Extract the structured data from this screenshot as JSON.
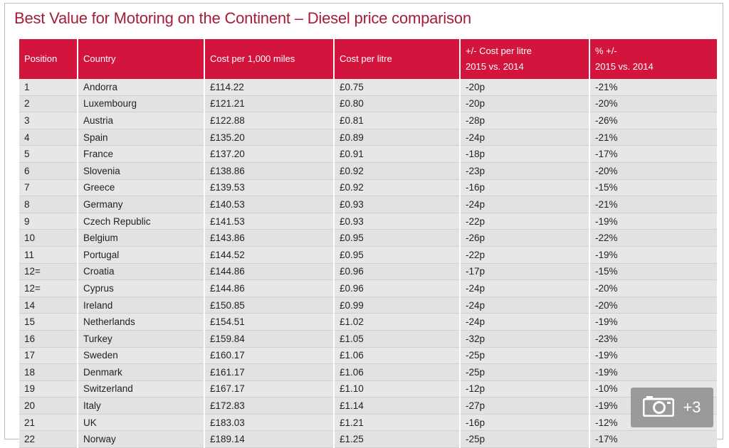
{
  "title": "Best Value for Motoring on the Continent – Diesel price comparison",
  "headers": {
    "position": "Position",
    "country": "Country",
    "cost_1000": "Cost per 1,000 miles",
    "cost_litre": "Cost per litre",
    "change_litre_line1": "+/- Cost per litre",
    "change_litre_line2": "2015 vs. 2014",
    "change_pct_line1": "% +/-",
    "change_pct_line2": "2015 vs. 2014"
  },
  "rows": [
    {
      "position": "1",
      "country": "Andorra",
      "cost_1000": "£114.22",
      "cost_litre": "£0.75",
      "change_litre": "-20p",
      "change_pct": "-21%"
    },
    {
      "position": "2",
      "country": "Luxembourg",
      "cost_1000": "£121.21",
      "cost_litre": "£0.80",
      "change_litre": "-20p",
      "change_pct": "-20%"
    },
    {
      "position": "3",
      "country": "Austria",
      "cost_1000": "£122.88",
      "cost_litre": "£0.81",
      "change_litre": "-28p",
      "change_pct": "-26%"
    },
    {
      "position": "4",
      "country": "Spain",
      "cost_1000": "£135.20",
      "cost_litre": "£0.89",
      "change_litre": "-24p",
      "change_pct": "-21%"
    },
    {
      "position": "5",
      "country": "France",
      "cost_1000": "£137.20",
      "cost_litre": "£0.91",
      "change_litre": "-18p",
      "change_pct": "-17%"
    },
    {
      "position": "6",
      "country": "Slovenia",
      "cost_1000": "£138.86",
      "cost_litre": "£0.92",
      "change_litre": "-23p",
      "change_pct": "-20%"
    },
    {
      "position": "7",
      "country": "Greece",
      "cost_1000": "£139.53",
      "cost_litre": "£0.92",
      "change_litre": "-16p",
      "change_pct": "-15%"
    },
    {
      "position": "8",
      "country": "Germany",
      "cost_1000": "£140.53",
      "cost_litre": "£0.93",
      "change_litre": "-24p",
      "change_pct": "-21%"
    },
    {
      "position": "9",
      "country": "Czech Republic",
      "cost_1000": "£141.53",
      "cost_litre": "£0.93",
      "change_litre": "-22p",
      "change_pct": "-19%"
    },
    {
      "position": "10",
      "country": "Belgium",
      "cost_1000": "£143.86",
      "cost_litre": "£0.95",
      "change_litre": "-26p",
      "change_pct": "-22%"
    },
    {
      "position": "11",
      "country": "Portugal",
      "cost_1000": "£144.52",
      "cost_litre": "£0.95",
      "change_litre": "-22p",
      "change_pct": "-19%"
    },
    {
      "position": "12=",
      "country": "Croatia",
      "cost_1000": "£144.86",
      "cost_litre": "£0.96",
      "change_litre": "-17p",
      "change_pct": "-15%"
    },
    {
      "position": "12=",
      "country": "Cyprus",
      "cost_1000": "£144.86",
      "cost_litre": "£0.96",
      "change_litre": "-24p",
      "change_pct": "-20%"
    },
    {
      "position": "14",
      "country": "Ireland",
      "cost_1000": "£150.85",
      "cost_litre": "£0.99",
      "change_litre": "-24p",
      "change_pct": "-20%"
    },
    {
      "position": "15",
      "country": "Netherlands",
      "cost_1000": "£154.51",
      "cost_litre": "£1.02",
      "change_litre": "-24p",
      "change_pct": "-19%"
    },
    {
      "position": "16",
      "country": "Turkey",
      "cost_1000": "£159.84",
      "cost_litre": "£1.05",
      "change_litre": "-32p",
      "change_pct": "-23%"
    },
    {
      "position": "17",
      "country": "Sweden",
      "cost_1000": "£160.17",
      "cost_litre": "£1.06",
      "change_litre": "-25p",
      "change_pct": "-19%"
    },
    {
      "position": "18",
      "country": "Denmark",
      "cost_1000": "£161.17",
      "cost_litre": "£1.06",
      "change_litre": "-25p",
      "change_pct": "-19%"
    },
    {
      "position": "19",
      "country": "Switzerland",
      "cost_1000": "£167.17",
      "cost_litre": "£1.10",
      "change_litre": "-12p",
      "change_pct": "-10%"
    },
    {
      "position": "20",
      "country": "Italy",
      "cost_1000": "£172.83",
      "cost_litre": "£1.14",
      "change_litre": "-27p",
      "change_pct": "-19%"
    },
    {
      "position": "21",
      "country": "UK",
      "cost_1000": "£183.03",
      "cost_litre": "£1.21",
      "change_litre": "-16p",
      "change_pct": "-12%"
    },
    {
      "position": "22",
      "country": "Norway",
      "cost_1000": "£189.14",
      "cost_litre": "£1.25",
      "change_litre": "-25p",
      "change_pct": "-17%"
    }
  ],
  "gallery": {
    "icon": "camera-icon",
    "count_label": "+3"
  },
  "colors": {
    "title": "#a51d36",
    "header_bg": "#d3153e",
    "row_bg": "#e7e7e7"
  }
}
